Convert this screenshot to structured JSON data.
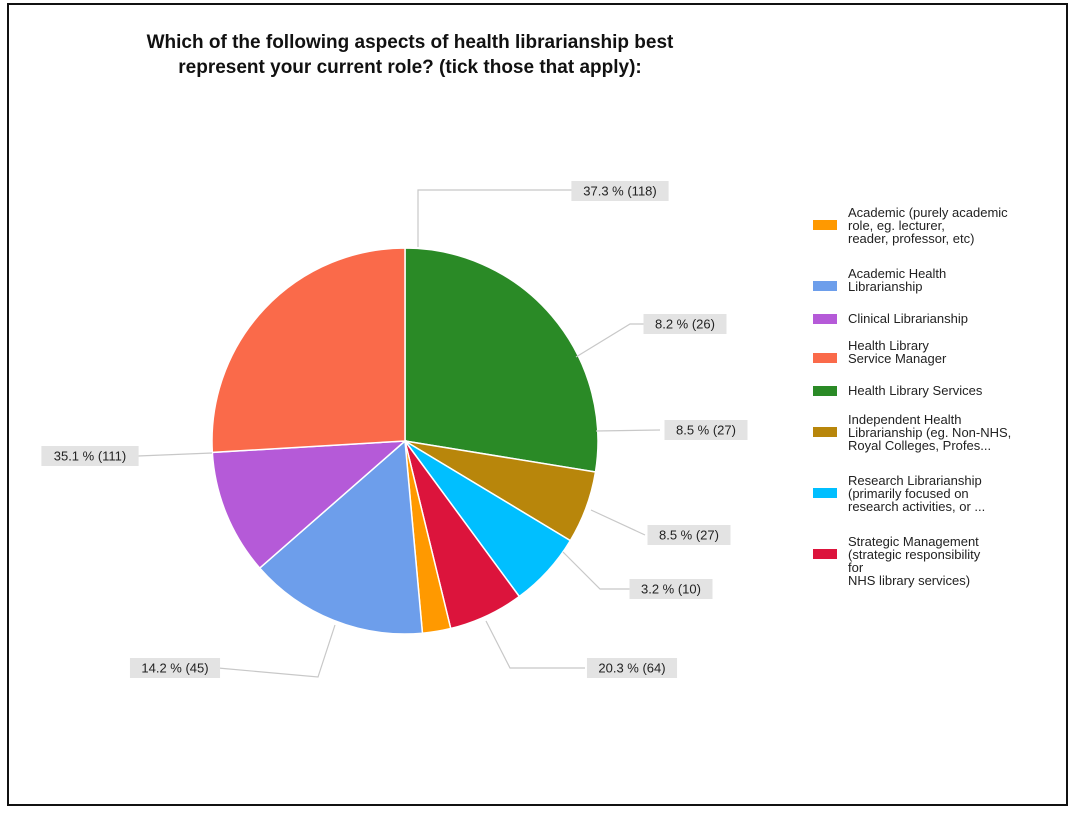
{
  "chart_data": {
    "type": "pie",
    "title": [
      "Which of the following aspects of health librarianship best",
      "represent your current role? (tick those that apply):"
    ],
    "legend_position": "right",
    "slices": [
      {
        "name": "Academic (purely academic role, eg. lecturer, reader, professor, etc)",
        "legend_lines": [
          "Academic (purely academic",
          "role, eg. lecturer,",
          "reader, professor, etc)"
        ],
        "percent": 3.2,
        "count": 10,
        "label": "3.2 % (10)",
        "color": "#ff9900"
      },
      {
        "name": "Academic Health Librarianship",
        "legend_lines": [
          "Academic Health",
          "Librarianship"
        ],
        "percent": 20.3,
        "count": 64,
        "label": "20.3 % (64)",
        "color": "#6d9eeb"
      },
      {
        "name": "Clinical Librarianship",
        "legend_lines": [
          "Clinical Librarianship"
        ],
        "percent": 14.2,
        "count": 45,
        "label": "14.2 % (45)",
        "color": "#b55ad8"
      },
      {
        "name": "Health Library Service Manager",
        "legend_lines": [
          "Health Library",
          "Service Manager"
        ],
        "percent": 35.1,
        "count": 111,
        "label": "35.1 % (111)",
        "color": "#fa6a4a"
      },
      {
        "name": "Health Library Services",
        "legend_lines": [
          "Health Library Services"
        ],
        "percent": 37.3,
        "count": 118,
        "label": "37.3 % (118)",
        "color": "#2a8a26"
      },
      {
        "name": "Independent Health Librarianship (eg. Non-NHS, Royal Colleges, Profes...",
        "legend_lines": [
          "Independent Health",
          "Librarianship (eg. Non-NHS,",
          "Royal Colleges, Profes..."
        ],
        "percent": 8.2,
        "count": 26,
        "label": "8.2 % (26)",
        "color": "#b8860b"
      },
      {
        "name": "Research Librarianship (primarily focused on research activities, or ...",
        "legend_lines": [
          "Research Librarianship",
          "(primarily focused on",
          "research activities, or ..."
        ],
        "percent": 8.5,
        "count": 27,
        "label": "8.5 % (27)",
        "color": "#00bfff"
      },
      {
        "name": "Strategic Management (strategic responsibility for NHS library services)",
        "legend_lines": [
          "Strategic Management",
          "(strategic responsibility",
          "for",
          "NHS library services)"
        ],
        "percent": 8.5,
        "count": 27,
        "label": "8.5 % (27)",
        "color": "#dc143c"
      }
    ]
  }
}
